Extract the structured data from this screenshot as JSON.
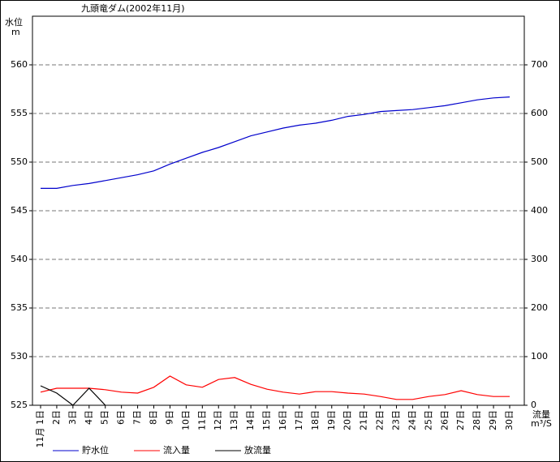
{
  "chart_data": {
    "type": "line",
    "title": "九頭竜ダム(2002年11月)",
    "y_label": "水位",
    "y_unit": "m",
    "y2_label": "流量",
    "y2_unit": "m³/S",
    "categories": [
      "11月 1日",
      "2日",
      "3日",
      "4日",
      "5日",
      "6日",
      "7日",
      "8日",
      "9日",
      "10日",
      "11日",
      "12日",
      "13日",
      "14日",
      "15日",
      "16日",
      "17日",
      "18日",
      "19日",
      "20日",
      "21日",
      "22日",
      "23日",
      "24日",
      "25日",
      "26日",
      "27日",
      "28日",
      "29日",
      "30日"
    ],
    "ylim": [
      525,
      565
    ],
    "yticks": [
      525,
      530,
      535,
      540,
      545,
      550,
      555,
      560
    ],
    "y2lim": [
      0,
      800
    ],
    "y2ticks": [
      0,
      100,
      200,
      300,
      400,
      500,
      600,
      700
    ],
    "grid": true,
    "series": [
      {
        "name": "貯水位",
        "color": "#0000cc",
        "values": [
          547.3,
          547.3,
          547.6,
          547.8,
          548.1,
          548.4,
          548.7,
          549.1,
          549.8,
          550.4,
          551.0,
          551.5,
          552.1,
          552.7,
          553.1,
          553.5,
          553.8,
          554.0,
          554.3,
          554.7,
          554.9,
          555.2,
          555.3,
          555.4,
          555.6,
          555.8,
          556.1,
          556.4,
          556.6,
          556.7
        ]
      },
      {
        "name": "流入量",
        "color": "#ff0000",
        "axis": "y2",
        "values": [
          27,
          35,
          35,
          35,
          32,
          27,
          25,
          37,
          60,
          42,
          37,
          53,
          57,
          43,
          33,
          27,
          23,
          28,
          28,
          25,
          23,
          18,
          12,
          12,
          18,
          22,
          30,
          22,
          18,
          18
        ]
      },
      {
        "name": "放流量",
        "color": "#000000",
        "axis": "y2",
        "values": [
          40,
          25,
          0,
          35,
          0,
          null,
          null,
          null,
          null,
          null,
          null,
          null,
          null,
          null,
          null,
          null,
          null,
          null,
          null,
          null,
          null,
          null,
          null,
          null,
          null,
          null,
          null,
          null,
          null,
          null
        ]
      }
    ]
  }
}
